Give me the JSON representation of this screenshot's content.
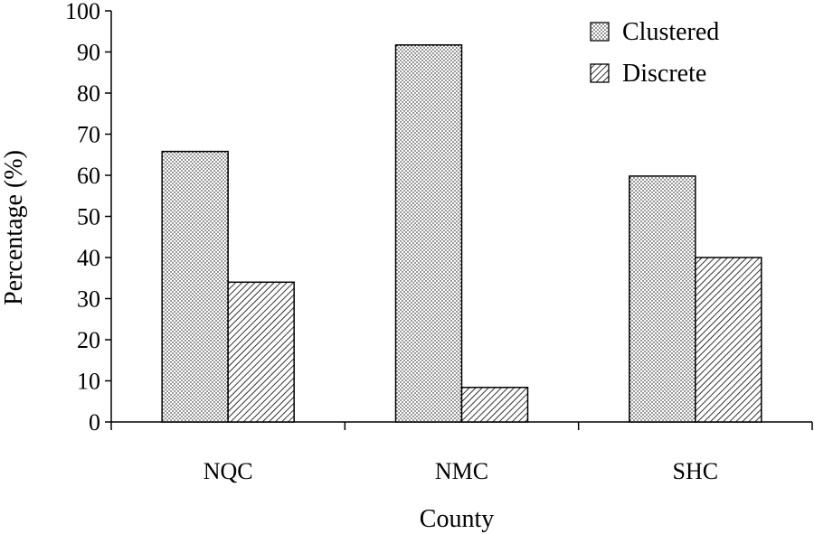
{
  "chart_data": {
    "type": "bar",
    "categories": [
      "NQC",
      "NMC",
      "SHC"
    ],
    "series": [
      {
        "name": "Clustered",
        "values": [
          65.8,
          91.7,
          59.8
        ],
        "pattern": "dots"
      },
      {
        "name": "Discrete",
        "values": [
          34.0,
          8.4,
          40.0
        ],
        "pattern": "hatch"
      }
    ],
    "xlabel": "County",
    "ylabel": "Percentage (%)",
    "ylim": [
      0,
      100
    ],
    "yticks": [
      0,
      10,
      20,
      30,
      40,
      50,
      60,
      70,
      80,
      90,
      100
    ],
    "grid": false,
    "legend_position": "top-right",
    "colors": {
      "bar_fill": "#ffffff",
      "stroke": "#000000",
      "pattern": "#000000"
    }
  }
}
